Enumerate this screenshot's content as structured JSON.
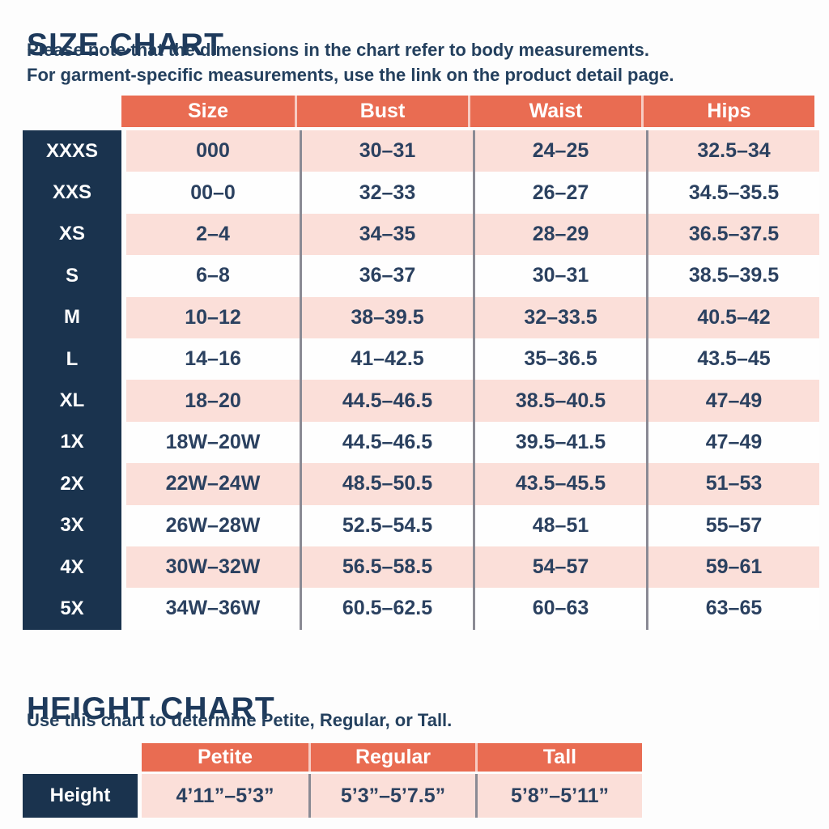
{
  "size_chart": {
    "title": "SIZE CHART",
    "subtitle_line1": "Please note that the dimensions in the chart refer to body measurements.",
    "subtitle_line2": "For garment-specific measurements, use the link on the product detail page.",
    "columns": [
      "Size",
      "Bust",
      "Waist",
      "Hips"
    ],
    "rows": [
      {
        "label": "XXXS",
        "size": "000",
        "bust": "30–31",
        "waist": "24–25",
        "hips": "32.5–34"
      },
      {
        "label": "XXS",
        "size": "00–0",
        "bust": "32–33",
        "waist": "26–27",
        "hips": "34.5–35.5"
      },
      {
        "label": "XS",
        "size": "2–4",
        "bust": "34–35",
        "waist": "28–29",
        "hips": "36.5–37.5"
      },
      {
        "label": "S",
        "size": "6–8",
        "bust": "36–37",
        "waist": "30–31",
        "hips": "38.5–39.5"
      },
      {
        "label": "M",
        "size": "10–12",
        "bust": "38–39.5",
        "waist": "32–33.5",
        "hips": "40.5–42"
      },
      {
        "label": "L",
        "size": "14–16",
        "bust": "41–42.5",
        "waist": "35–36.5",
        "hips": "43.5–45"
      },
      {
        "label": "XL",
        "size": "18–20",
        "bust": "44.5–46.5",
        "waist": "38.5–40.5",
        "hips": "47–49"
      },
      {
        "label": "1X",
        "size": "18W–20W",
        "bust": "44.5–46.5",
        "waist": "39.5–41.5",
        "hips": "47–49"
      },
      {
        "label": "2X",
        "size": "22W–24W",
        "bust": "48.5–50.5",
        "waist": "43.5–45.5",
        "hips": "51–53"
      },
      {
        "label": "3X",
        "size": "26W–28W",
        "bust": "52.5–54.5",
        "waist": "48–51",
        "hips": "55–57"
      },
      {
        "label": "4X",
        "size": "30W–32W",
        "bust": "56.5–58.5",
        "waist": "54–57",
        "hips": "59–61"
      },
      {
        "label": "5X",
        "size": "34W–36W",
        "bust": "60.5–62.5",
        "waist": "60–63",
        "hips": "63–65"
      }
    ]
  },
  "height_chart": {
    "title": "HEIGHT CHART",
    "subtitle": "Use this chart to determine Petite, Regular, or Tall.",
    "columns": [
      "Petite",
      "Regular",
      "Tall"
    ],
    "row_label": "Height",
    "values": [
      "4’11”–5’3”",
      "5’3”–5’7.5”",
      "5’8”–5’11”"
    ]
  },
  "colors": {
    "coral_header": "#E96C52",
    "navy_label": "#1A334E",
    "pink_row": "#FBDFD9",
    "white_row": "#FEFEFE",
    "text_navy": "#2B4160",
    "column_rule_gray": "#8A8A94"
  },
  "chart_data": [
    {
      "type": "table",
      "title": "SIZE CHART",
      "columns": [
        "Size",
        "Bust",
        "Waist",
        "Hips"
      ],
      "row_labels": [
        "XXXS",
        "XXS",
        "XS",
        "S",
        "M",
        "L",
        "XL",
        "1X",
        "2X",
        "3X",
        "4X",
        "5X"
      ],
      "rows": [
        [
          "000",
          "30–31",
          "24–25",
          "32.5–34"
        ],
        [
          "00–0",
          "32–33",
          "26–27",
          "34.5–35.5"
        ],
        [
          "2–4",
          "34–35",
          "28–29",
          "36.5–37.5"
        ],
        [
          "6–8",
          "36–37",
          "30–31",
          "38.5–39.5"
        ],
        [
          "10–12",
          "38–39.5",
          "32–33.5",
          "40.5–42"
        ],
        [
          "14–16",
          "41–42.5",
          "35–36.5",
          "43.5–45"
        ],
        [
          "18–20",
          "44.5–46.5",
          "38.5–40.5",
          "47–49"
        ],
        [
          "18W–20W",
          "44.5–46.5",
          "39.5–41.5",
          "47–49"
        ],
        [
          "22W–24W",
          "48.5–50.5",
          "43.5–45.5",
          "51–53"
        ],
        [
          "26W–28W",
          "52.5–54.5",
          "48–51",
          "55–57"
        ],
        [
          "30W–32W",
          "56.5–58.5",
          "54–57",
          "59–61"
        ],
        [
          "34W–36W",
          "60.5–62.5",
          "60–63",
          "63–65"
        ]
      ]
    },
    {
      "type": "table",
      "title": "HEIGHT CHART",
      "columns": [
        "Petite",
        "Regular",
        "Tall"
      ],
      "row_labels": [
        "Height"
      ],
      "rows": [
        [
          "4’11”–5’3”",
          "5’3”–5’7.5”",
          "5’8”–5’11”"
        ]
      ]
    }
  ]
}
